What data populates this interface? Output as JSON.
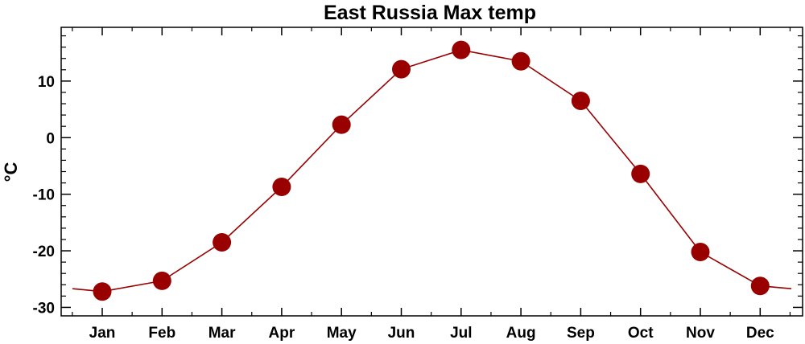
{
  "chart_data": {
    "type": "line",
    "title": "East Russia Max temp",
    "xlabel": "",
    "ylabel": "°C",
    "categories": [
      "Jan",
      "Feb",
      "Mar",
      "Apr",
      "May",
      "Jun",
      "Jul",
      "Aug",
      "Sep",
      "Oct",
      "Nov",
      "Dec"
    ],
    "series": [
      {
        "values": [
          -27.2,
          -25.3,
          -18.5,
          -8.7,
          2.3,
          12.1,
          15.5,
          13.5,
          6.5,
          -6.4,
          -20.2,
          -26.2
        ]
      }
    ],
    "wrap_left_value": -26.7,
    "wrap_right_value": -26.7,
    "yticks": [
      -30,
      -20,
      -10,
      0,
      10
    ],
    "ytick_labels": [
      "-30",
      "-20",
      "-10",
      "0",
      "10"
    ],
    "ylim": [
      -31.5,
      19.5
    ],
    "grid": false,
    "legend": "none",
    "colors": {
      "series": "#990000",
      "axis": "#000000"
    }
  }
}
